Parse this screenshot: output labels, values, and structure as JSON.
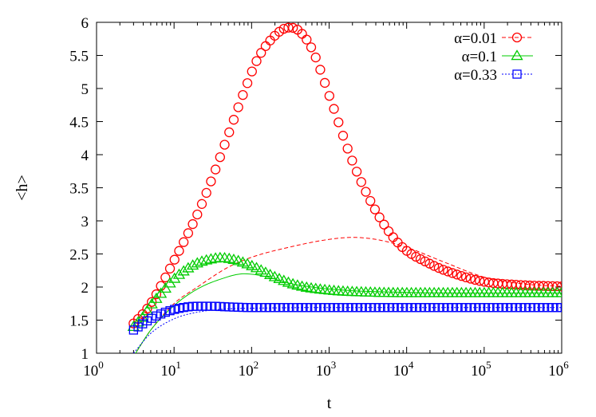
{
  "chart_data": {
    "type": "scatter",
    "title": "",
    "xlabel": "t",
    "ylabel": "<h>",
    "xscale": "log",
    "xlim": [
      1,
      1000000
    ],
    "ylim": [
      1,
      6
    ],
    "x_ticks": [
      {
        "value": 1,
        "base": "10",
        "exp": "0"
      },
      {
        "value": 10,
        "base": "10",
        "exp": "1"
      },
      {
        "value": 100,
        "base": "10",
        "exp": "2"
      },
      {
        "value": 1000,
        "base": "10",
        "exp": "3"
      },
      {
        "value": 10000,
        "base": "10",
        "exp": "4"
      },
      {
        "value": 100000,
        "base": "10",
        "exp": "5"
      },
      {
        "value": 1000000,
        "base": "10",
        "exp": "6"
      }
    ],
    "y_ticks": [
      {
        "value": 1,
        "label": "1"
      },
      {
        "value": 1.5,
        "label": "1.5"
      },
      {
        "value": 2,
        "label": "2"
      },
      {
        "value": 2.5,
        "label": "2.5"
      },
      {
        "value": 3,
        "label": "3"
      },
      {
        "value": 3.5,
        "label": "3.5"
      },
      {
        "value": 4,
        "label": "4"
      },
      {
        "value": 4.5,
        "label": "4.5"
      },
      {
        "value": 5,
        "label": "5"
      },
      {
        "value": 5.5,
        "label": "5.5"
      },
      {
        "value": 6,
        "label": "6"
      }
    ],
    "grid": false,
    "legend_position": "top-right",
    "series": [
      {
        "name": "α=0.01",
        "color": "#ff0000",
        "marker": "circle",
        "line_style": "dashed",
        "points": [
          [
            3,
            1.45
          ],
          [
            4,
            1.6
          ],
          [
            5,
            1.75
          ],
          [
            7,
            2.05
          ],
          [
            10,
            2.4
          ],
          [
            15,
            2.8
          ],
          [
            20,
            3.1
          ],
          [
            30,
            3.6
          ],
          [
            50,
            4.3
          ],
          [
            80,
            4.95
          ],
          [
            120,
            5.45
          ],
          [
            200,
            5.8
          ],
          [
            300,
            5.92
          ],
          [
            400,
            5.88
          ],
          [
            600,
            5.6
          ],
          [
            1000,
            4.9
          ],
          [
            2000,
            3.9
          ],
          [
            4000,
            3.15
          ],
          [
            8000,
            2.65
          ],
          [
            20000,
            2.35
          ],
          [
            50000,
            2.17
          ],
          [
            100000,
            2.08
          ],
          [
            300000,
            2.03
          ],
          [
            1000000,
            2.01
          ]
        ],
        "line_points": [
          [
            3,
            0.95
          ],
          [
            5,
            1.35
          ],
          [
            10,
            1.75
          ],
          [
            20,
            2.0
          ],
          [
            50,
            2.3
          ],
          [
            100,
            2.45
          ],
          [
            300,
            2.6
          ],
          [
            1000,
            2.72
          ],
          [
            2000,
            2.75
          ],
          [
            4000,
            2.72
          ],
          [
            10000,
            2.6
          ],
          [
            30000,
            2.38
          ],
          [
            100000,
            2.15
          ],
          [
            300000,
            2.05
          ],
          [
            1000000,
            2.01
          ]
        ]
      },
      {
        "name": "α=0.1",
        "color": "#00cc00",
        "marker": "triangle",
        "line_style": "solid",
        "points": [
          [
            3,
            1.4
          ],
          [
            4,
            1.55
          ],
          [
            5,
            1.72
          ],
          [
            7,
            1.92
          ],
          [
            10,
            2.12
          ],
          [
            15,
            2.28
          ],
          [
            20,
            2.36
          ],
          [
            30,
            2.42
          ],
          [
            40,
            2.44
          ],
          [
            60,
            2.41
          ],
          [
            100,
            2.32
          ],
          [
            200,
            2.15
          ],
          [
            400,
            2.02
          ],
          [
            1000,
            1.95
          ],
          [
            3000,
            1.92
          ],
          [
            10000,
            1.91
          ],
          [
            100000,
            1.91
          ],
          [
            1000000,
            1.91
          ]
        ],
        "line_points": [
          [
            3,
            0.95
          ],
          [
            5,
            1.35
          ],
          [
            10,
            1.72
          ],
          [
            20,
            1.97
          ],
          [
            40,
            2.12
          ],
          [
            80,
            2.2
          ],
          [
            150,
            2.16
          ],
          [
            300,
            2.06
          ],
          [
            1000,
            1.97
          ],
          [
            10000,
            1.92
          ],
          [
            1000000,
            1.91
          ]
        ]
      },
      {
        "name": "α=0.33",
        "color": "#0000ff",
        "marker": "square",
        "line_style": "dotted",
        "points": [
          [
            3,
            1.35
          ],
          [
            4,
            1.45
          ],
          [
            5,
            1.52
          ],
          [
            7,
            1.6
          ],
          [
            10,
            1.66
          ],
          [
            15,
            1.7
          ],
          [
            20,
            1.71
          ],
          [
            30,
            1.71
          ],
          [
            50,
            1.7
          ],
          [
            100,
            1.69
          ],
          [
            1000,
            1.69
          ],
          [
            10000,
            1.69
          ],
          [
            100000,
            1.69
          ],
          [
            1000000,
            1.69
          ]
        ],
        "line_points": [
          [
            3,
            1.0
          ],
          [
            5,
            1.3
          ],
          [
            10,
            1.52
          ],
          [
            20,
            1.62
          ],
          [
            50,
            1.67
          ],
          [
            100,
            1.68
          ],
          [
            1000,
            1.69
          ],
          [
            1000000,
            1.69
          ]
        ]
      }
    ]
  }
}
